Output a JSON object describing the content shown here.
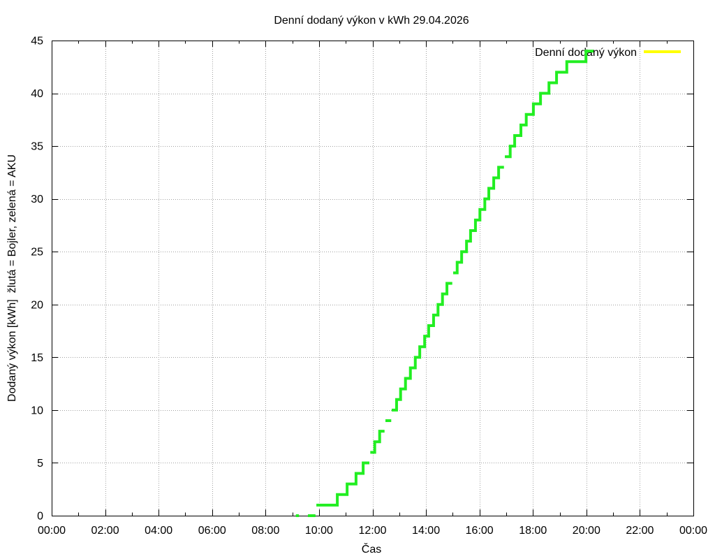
{
  "chart_data": {
    "type": "line",
    "line_style": "steps",
    "title": "Denní dodaný výkon v kWh 29.04.2026",
    "xlabel": "Čas",
    "ylabel": "Dodaný výkon [kWh]  žlutá = Bojler, zelená = AKU",
    "xlim": [
      "00:00",
      "24:00"
    ],
    "ylim": [
      0,
      45
    ],
    "x_tick_labels": [
      "00:00",
      "02:00",
      "04:00",
      "06:00",
      "08:00",
      "10:00",
      "12:00",
      "14:00",
      "16:00",
      "18:00",
      "20:00",
      "22:00",
      "00:00"
    ],
    "y_ticks": [
      0,
      5,
      10,
      15,
      20,
      25,
      30,
      35,
      40,
      45
    ],
    "grid": true,
    "legend_position": "top-right",
    "series": [
      {
        "name": "Denní dodaný výkon",
        "color": "#ffff00",
        "runs": []
      },
      {
        "color": "#22ee22",
        "runs": [
          [
            {
              "from": "09:08",
              "to": "09:15",
              "value": 0
            }
          ],
          [
            {
              "from": "09:35",
              "to": "09:52",
              "value": 0
            }
          ],
          [
            {
              "from": "09:54",
              "to": "10:41",
              "value": 1
            },
            {
              "from": "10:41",
              "to": "11:03",
              "value": 2
            },
            {
              "from": "11:03",
              "to": "11:23",
              "value": 3
            },
            {
              "from": "11:23",
              "to": "11:39",
              "value": 4
            },
            {
              "from": "11:39",
              "to": "11:53",
              "value": 5
            }
          ],
          [
            {
              "from": "11:55",
              "to": "12:05",
              "value": 6
            },
            {
              "from": "12:05",
              "to": "12:16",
              "value": 7
            },
            {
              "from": "12:16",
              "to": "12:27",
              "value": 8
            }
          ],
          [
            {
              "from": "12:29",
              "to": "12:42",
              "value": 9
            }
          ],
          [
            {
              "from": "12:43",
              "to": "12:54",
              "value": 10
            },
            {
              "from": "12:54",
              "to": "13:03",
              "value": 11
            },
            {
              "from": "13:03",
              "to": "13:14",
              "value": 12
            },
            {
              "from": "13:14",
              "to": "13:25",
              "value": 13
            },
            {
              "from": "13:25",
              "to": "13:36",
              "value": 14
            },
            {
              "from": "13:36",
              "to": "13:46",
              "value": 15
            },
            {
              "from": "13:46",
              "to": "13:57",
              "value": 16
            },
            {
              "from": "13:57",
              "to": "14:06",
              "value": 17
            },
            {
              "from": "14:06",
              "to": "14:17",
              "value": 18
            },
            {
              "from": "14:17",
              "to": "14:27",
              "value": 19
            },
            {
              "from": "14:27",
              "to": "14:37",
              "value": 20
            },
            {
              "from": "14:37",
              "to": "14:47",
              "value": 21
            },
            {
              "from": "14:47",
              "to": "14:59",
              "value": 22
            }
          ],
          [
            {
              "from": "15:01",
              "to": "15:10",
              "value": 23
            },
            {
              "from": "15:10",
              "to": "15:20",
              "value": 24
            },
            {
              "from": "15:20",
              "to": "15:31",
              "value": 25
            },
            {
              "from": "15:31",
              "to": "15:40",
              "value": 26
            },
            {
              "from": "15:40",
              "to": "15:51",
              "value": 27
            },
            {
              "from": "15:51",
              "to": "16:01",
              "value": 28
            },
            {
              "from": "16:01",
              "to": "16:12",
              "value": 29
            },
            {
              "from": "16:12",
              "to": "16:21",
              "value": 30
            },
            {
              "from": "16:21",
              "to": "16:32",
              "value": 31
            },
            {
              "from": "16:32",
              "to": "16:43",
              "value": 32
            },
            {
              "from": "16:43",
              "to": "16:55",
              "value": 33
            }
          ],
          [
            {
              "from": "16:57",
              "to": "17:09",
              "value": 34
            },
            {
              "from": "17:09",
              "to": "17:19",
              "value": 35
            },
            {
              "from": "17:19",
              "to": "17:33",
              "value": 36
            },
            {
              "from": "17:33",
              "to": "17:45",
              "value": 37
            },
            {
              "from": "17:45",
              "to": "18:01",
              "value": 38
            },
            {
              "from": "18:01",
              "to": "18:17",
              "value": 39
            },
            {
              "from": "18:17",
              "to": "18:36",
              "value": 40
            },
            {
              "from": "18:36",
              "to": "18:53",
              "value": 41
            },
            {
              "from": "18:53",
              "to": "19:16",
              "value": 42
            },
            {
              "from": "19:16",
              "to": "19:59",
              "value": 43
            },
            {
              "from": "19:59",
              "to": "20:16",
              "value": 44
            }
          ]
        ]
      }
    ]
  }
}
